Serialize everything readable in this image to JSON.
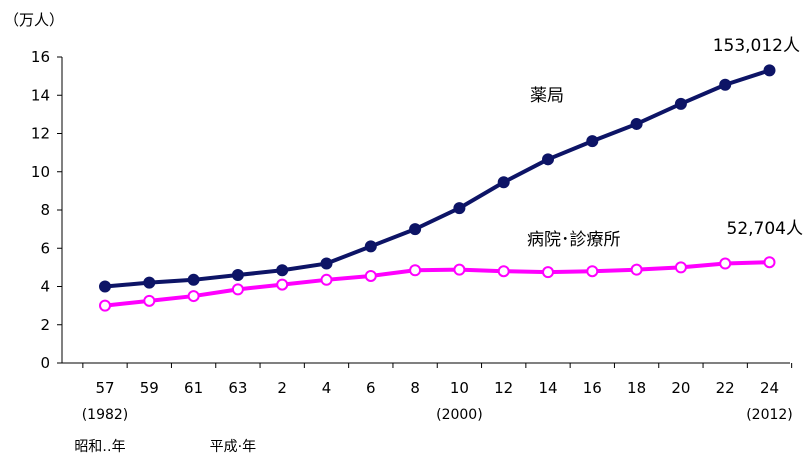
{
  "chart_data": {
    "type": "line",
    "title": "",
    "ylabel": "（万人）",
    "xlabel": "",
    "ylim": [
      0,
      16
    ],
    "yticks": [
      "0",
      "2",
      "4",
      "6",
      "8",
      "10",
      "12",
      "14",
      "16"
    ],
    "categories": [
      "57",
      "59",
      "61",
      "63",
      "2",
      "4",
      "6",
      "8",
      "10",
      "12",
      "14",
      "16",
      "18",
      "20",
      "22",
      "24"
    ],
    "year_markers": [
      {
        "category": "57",
        "label": "(1982)"
      },
      {
        "category": "10",
        "label": "(2000)"
      },
      {
        "category": "24",
        "label": "(2012)"
      }
    ],
    "era_labels": [
      {
        "category": "57",
        "label": "昭和‥年"
      },
      {
        "category": "63",
        "label": "平成·年"
      }
    ],
    "series": [
      {
        "name": "薬局",
        "color": "#0d1466",
        "marker": "filled",
        "values": [
          4.0,
          4.2,
          4.35,
          4.6,
          4.85,
          5.2,
          6.1,
          7.0,
          8.1,
          9.45,
          10.65,
          11.6,
          12.5,
          13.55,
          14.55,
          15.3
        ],
        "end_label": "153,012人"
      },
      {
        "name": "病院･診療所",
        "color": "#ff00ff",
        "marker": "hollow",
        "values": [
          3.0,
          3.25,
          3.5,
          3.85,
          4.1,
          4.35,
          4.55,
          4.85,
          4.88,
          4.8,
          4.75,
          4.8,
          4.88,
          5.0,
          5.2,
          5.27
        ],
        "end_label": "52,704人"
      }
    ],
    "grid": false,
    "legend": "inline labels"
  }
}
